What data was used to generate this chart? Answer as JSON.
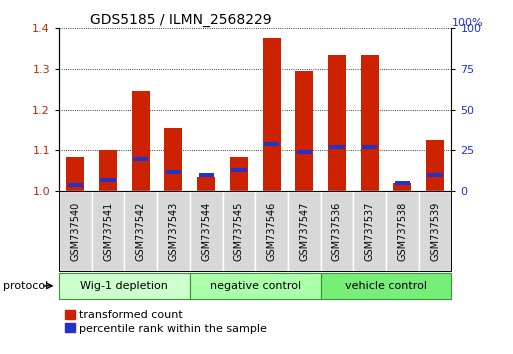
{
  "title": "GDS5185 / ILMN_2568229",
  "samples": [
    "GSM737540",
    "GSM737541",
    "GSM737542",
    "GSM737543",
    "GSM737544",
    "GSM737545",
    "GSM737546",
    "GSM737547",
    "GSM737536",
    "GSM737537",
    "GSM737538",
    "GSM737539"
  ],
  "red_values": [
    1.085,
    1.1,
    1.245,
    1.155,
    1.035,
    1.085,
    1.375,
    1.295,
    1.335,
    1.335,
    1.02,
    1.125
  ],
  "blue_pct": [
    4,
    7,
    20,
    12,
    10,
    13,
    29,
    24,
    27,
    27,
    5,
    10
  ],
  "groups": [
    {
      "label": "Wig-1 depletion",
      "start": 0,
      "end": 4,
      "color": "#ccffcc"
    },
    {
      "label": "negative control",
      "start": 4,
      "end": 8,
      "color": "#aaffaa"
    },
    {
      "label": "vehicle control",
      "start": 8,
      "end": 12,
      "color": "#77ee77"
    }
  ],
  "ylim_left": [
    1.0,
    1.4
  ],
  "ylim_right": [
    0,
    100
  ],
  "yticks_left": [
    1.0,
    1.1,
    1.2,
    1.3,
    1.4
  ],
  "yticks_right": [
    0,
    25,
    50,
    75,
    100
  ],
  "bar_color": "#cc2200",
  "blue_color": "#2233cc",
  "sample_bg": "#d8d8d8",
  "legend_red": "transformed count",
  "legend_blue": "percentile rank within the sample",
  "left_color": "#cc2200",
  "right_color": "#2233cc"
}
